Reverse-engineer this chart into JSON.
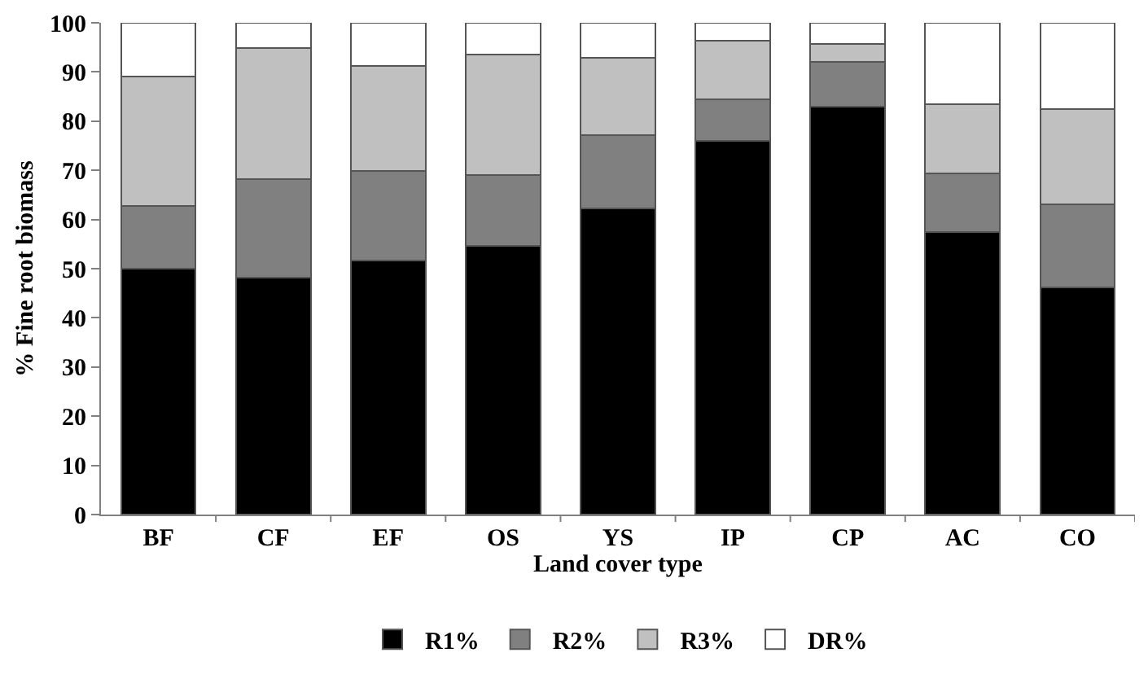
{
  "chart_data": {
    "type": "bar",
    "stacked": true,
    "xlabel": "Land cover type",
    "ylabel": "% Fine root biomass",
    "categories": [
      "BF",
      "CF",
      "EF",
      "OS",
      "YS",
      "IP",
      "CP",
      "AC",
      "CO"
    ],
    "series": [
      {
        "name": "R1%",
        "color": "#000000",
        "values": [
          50,
          48.2,
          51.6,
          54.7,
          62.2,
          76,
          83,
          57.5,
          46.2
        ]
      },
      {
        "name": "R2%",
        "color": "#808080",
        "values": [
          12.7,
          20,
          18.2,
          14.4,
          15,
          8.5,
          9,
          11.8,
          16.8
        ]
      },
      {
        "name": "R3%",
        "color": "#c0c0c0",
        "values": [
          26.3,
          26.6,
          21.5,
          24.5,
          15.7,
          11.8,
          3.7,
          14.1,
          19.5
        ]
      },
      {
        "name": "DR%",
        "color": "#ffffff",
        "values": [
          11,
          5.2,
          8.7,
          6.4,
          7.1,
          3.7,
          4.3,
          16.6,
          17.5
        ]
      }
    ],
    "ylim": [
      0,
      100
    ],
    "yticks": [
      0,
      10,
      20,
      30,
      40,
      50,
      60,
      70,
      80,
      90,
      100
    ],
    "grid": false,
    "legend": "bottom"
  }
}
